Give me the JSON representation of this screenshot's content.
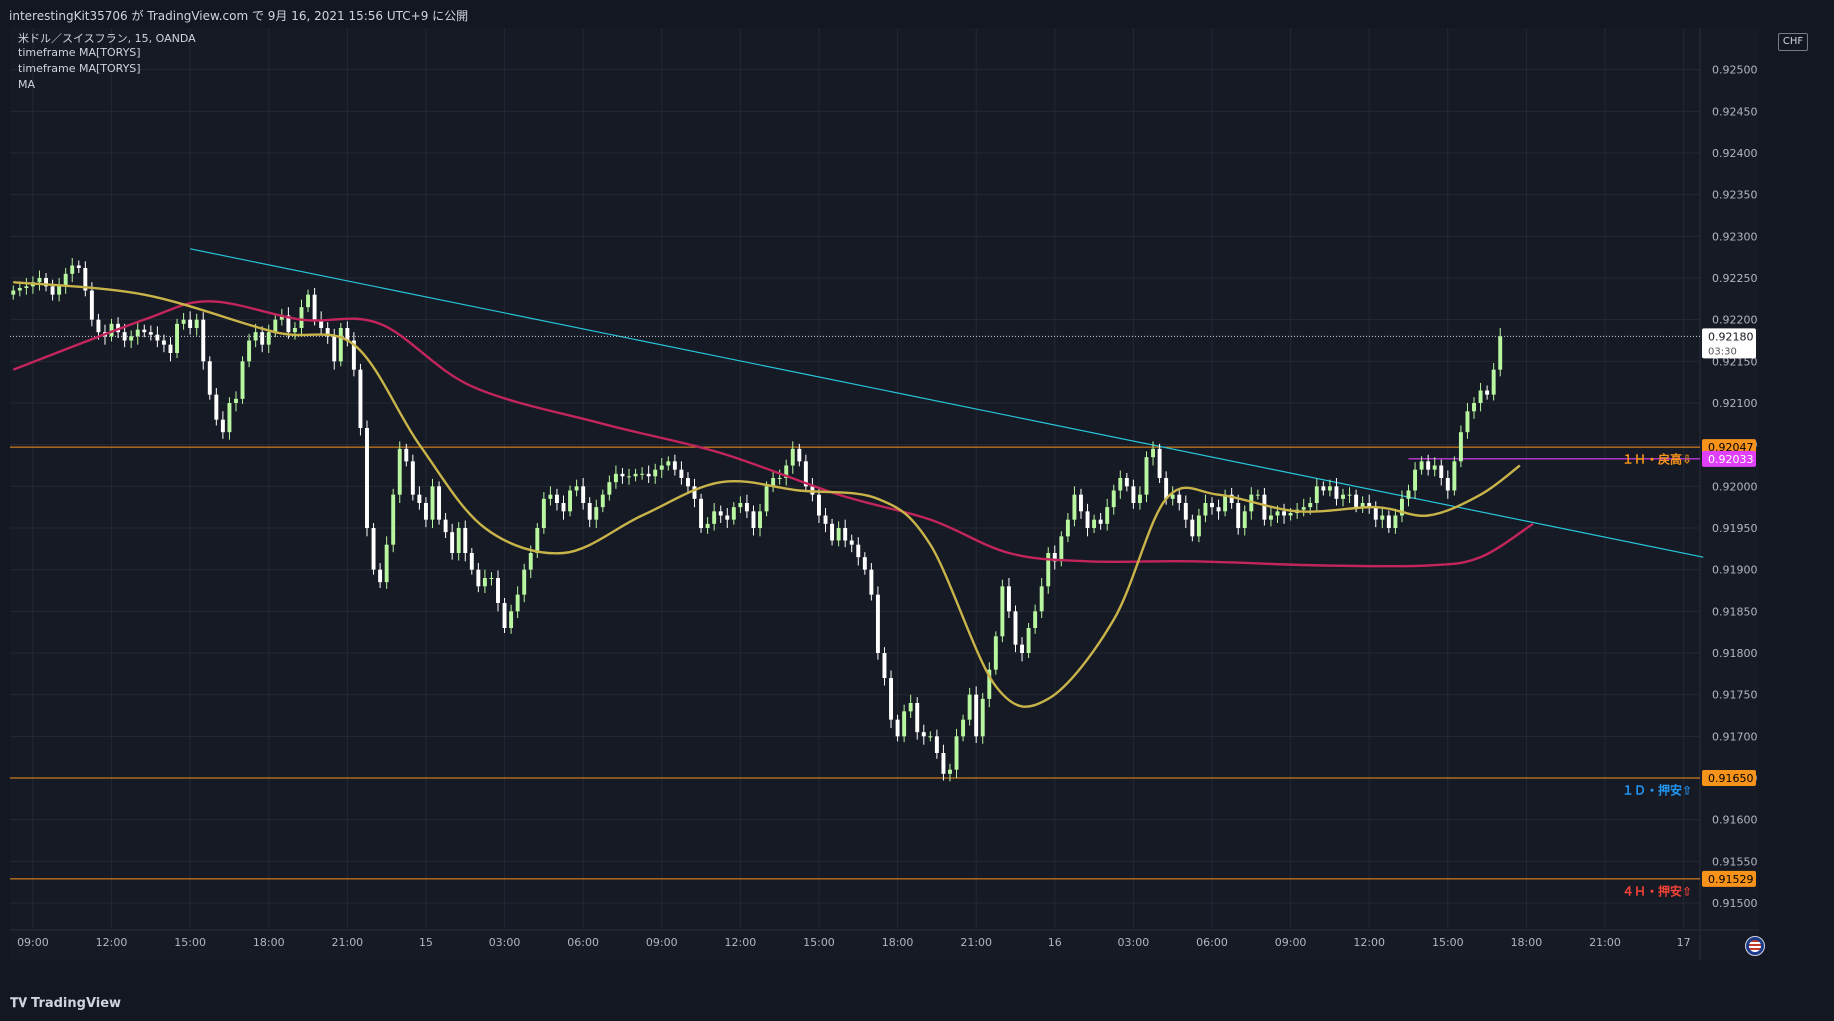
{
  "header": {
    "text": "interestingKit35706 が TradingView.com で 9月 16, 2021 15:56 UTC+9 に公開"
  },
  "legend": {
    "symbol": "米ドル／スイスフラン, 15, OANDA",
    "ind1": "timeframe MA[TORYS]",
    "ind2": "timeframe MA[TORYS]",
    "ind3": "MA"
  },
  "currency": "CHF",
  "brand": {
    "name": "TradingView",
    "logo": "tradingview-logo"
  },
  "colors": {
    "background": "#161a25",
    "grid": "#242833",
    "up": "#b9f6a0",
    "down": "#ffffff",
    "fast_ma": "#c9b44a",
    "slow_ma": "#c2255c",
    "trendline": "#26c6da",
    "level": "#f7931a",
    "magenta": "#e040fb"
  },
  "chart_data": {
    "type": "candlestick",
    "y_ticks": [
      "0.92500",
      "0.92450",
      "0.92400",
      "0.92350",
      "0.92300",
      "0.92250",
      "0.92200",
      "0.92150",
      "0.92100",
      "0.92050",
      "0.92000",
      "0.91950",
      "0.91900",
      "0.91850",
      "0.91800",
      "0.91750",
      "0.91700",
      "0.91650",
      "0.91600",
      "0.91550",
      "0.91500"
    ],
    "ylim": [
      0.9147,
      0.9255
    ],
    "x_ticks": [
      {
        "label": "09:00",
        "i": 3
      },
      {
        "label": "12:00",
        "i": 15
      },
      {
        "label": "15:00",
        "i": 27
      },
      {
        "label": "18:00",
        "i": 39
      },
      {
        "label": "21:00",
        "i": 51
      },
      {
        "label": "15",
        "i": 63
      },
      {
        "label": "03:00",
        "i": 75
      },
      {
        "label": "06:00",
        "i": 87
      },
      {
        "label": "09:00",
        "i": 99
      },
      {
        "label": "12:00",
        "i": 111
      },
      {
        "label": "15:00",
        "i": 123
      },
      {
        "label": "18:00",
        "i": 135
      },
      {
        "label": "21:00",
        "i": 147
      },
      {
        "label": "16",
        "i": 159
      },
      {
        "label": "03:00",
        "i": 171
      },
      {
        "label": "06:00",
        "i": 183
      },
      {
        "label": "09:00",
        "i": 195
      },
      {
        "label": "12:00",
        "i": 207
      },
      {
        "label": "15:00",
        "i": 219
      },
      {
        "label": "18:00",
        "i": 231
      },
      {
        "label": "21:00",
        "i": 243
      },
      {
        "label": "17",
        "i": 255
      }
    ],
    "x_count": 258,
    "close": [
      0.92235,
      0.92238,
      0.9224,
      0.92245,
      0.9225,
      0.9224,
      0.9223,
      0.9224,
      0.92255,
      0.92265,
      0.92262,
      0.92235,
      0.922,
      0.92185,
      0.9218,
      0.92195,
      0.92185,
      0.92175,
      0.9218,
      0.92188,
      0.92185,
      0.92182,
      0.92175,
      0.9217,
      0.9216,
      0.92195,
      0.922,
      0.9219,
      0.922,
      0.9215,
      0.9211,
      0.9208,
      0.92065,
      0.921,
      0.92105,
      0.9215,
      0.92175,
      0.92185,
      0.9217,
      0.92185,
      0.922,
      0.92205,
      0.92185,
      0.9219,
      0.92215,
      0.9223,
      0.922,
      0.9219,
      0.9218,
      0.9215,
      0.9219,
      0.92175,
      0.9214,
      0.9207,
      0.9195,
      0.919,
      0.91885,
      0.9193,
      0.9199,
      0.92045,
      0.9203,
      0.9199,
      0.9198,
      0.9196,
      0.92,
      0.9196,
      0.91945,
      0.9192,
      0.9195,
      0.9192,
      0.919,
      0.9188,
      0.9189,
      0.9189,
      0.9186,
      0.9183,
      0.9185,
      0.9187,
      0.919,
      0.9192,
      0.9195,
      0.91985,
      0.9199,
      0.9198,
      0.9197,
      0.91995,
      0.92,
      0.9198,
      0.9196,
      0.91975,
      0.9199,
      0.92005,
      0.92015,
      0.92012,
      0.92012,
      0.92015,
      0.92015,
      0.92012,
      0.9202,
      0.92025,
      0.9203,
      0.9202,
      0.9201,
      0.92,
      0.91985,
      0.9195,
      0.91955,
      0.9197,
      0.91965,
      0.9196,
      0.91975,
      0.9198,
      0.9197,
      0.9195,
      0.9197,
      0.92,
      0.9201,
      0.9201,
      0.92025,
      0.92045,
      0.9203,
      0.92,
      0.9199,
      0.91965,
      0.91955,
      0.91935,
      0.9195,
      0.91935,
      0.9193,
      0.91915,
      0.919,
      0.9187,
      0.918,
      0.9177,
      0.9172,
      0.917,
      0.9173,
      0.9174,
      0.91705,
      0.917,
      0.917,
      0.9168,
      0.91655,
      0.9166,
      0.917,
      0.9172,
      0.9175,
      0.917,
      0.91745,
      0.9178,
      0.9182,
      0.9188,
      0.9185,
      0.9181,
      0.918,
      0.9183,
      0.9185,
      0.9188,
      0.9192,
      0.9191,
      0.9194,
      0.9196,
      0.9199,
      0.9197,
      0.9195,
      0.9196,
      0.91955,
      0.91975,
      0.91995,
      0.9201,
      0.92,
      0.9198,
      0.9199,
      0.92035,
      0.92045,
      0.9201,
      0.91985,
      0.9199,
      0.9198,
      0.9196,
      0.9194,
      0.91965,
      0.9198,
      0.91975,
      0.9197,
      0.9199,
      0.9198,
      0.9195,
      0.9197,
      0.9199,
      0.9199,
      0.9196,
      0.91965,
      0.9197,
      0.91965,
      0.91968,
      0.91972,
      0.91975,
      0.9198,
      0.92,
      0.91995,
      0.92,
      0.91985,
      0.9199,
      0.9199,
      0.91975,
      0.9198,
      0.91975,
      0.9196,
      0.91965,
      0.9195,
      0.91965,
      0.91985,
      0.91995,
      0.9202,
      0.9203,
      0.9202,
      0.92025,
      0.9201,
      0.91995,
      0.9203,
      0.92065,
      0.9209,
      0.921,
      0.92115,
      0.9211,
      0.9214,
      0.9218
    ],
    "fast_ma_points": [
      [
        0,
        0.92245
      ],
      [
        20,
        0.9223
      ],
      [
        40,
        0.92185
      ],
      [
        52,
        0.9217
      ],
      [
        62,
        0.9205
      ],
      [
        72,
        0.9195
      ],
      [
        84,
        0.9192
      ],
      [
        96,
        0.91965
      ],
      [
        108,
        0.92005
      ],
      [
        120,
        0.91995
      ],
      [
        132,
        0.91985
      ],
      [
        140,
        0.9193
      ],
      [
        150,
        0.9176
      ],
      [
        158,
        0.91745
      ],
      [
        168,
        0.9184
      ],
      [
        176,
        0.91985
      ],
      [
        184,
        0.9199
      ],
      [
        196,
        0.9197
      ],
      [
        208,
        0.91975
      ],
      [
        216,
        0.91965
      ],
      [
        224,
        0.9199
      ],
      [
        230,
        0.92025
      ]
    ],
    "slow_ma_points": [
      [
        0,
        0.9214
      ],
      [
        20,
        0.922
      ],
      [
        30,
        0.92222
      ],
      [
        44,
        0.922
      ],
      [
        56,
        0.92195
      ],
      [
        70,
        0.9212
      ],
      [
        90,
        0.92075
      ],
      [
        108,
        0.9204
      ],
      [
        126,
        0.9199
      ],
      [
        140,
        0.9196
      ],
      [
        152,
        0.9192
      ],
      [
        164,
        0.9191
      ],
      [
        180,
        0.9191
      ],
      [
        200,
        0.91905
      ],
      [
        216,
        0.91905
      ],
      [
        224,
        0.91915
      ],
      [
        232,
        0.91955
      ]
    ],
    "trendline": [
      [
        27,
        0.92285
      ],
      [
        258,
        0.91915
      ]
    ],
    "levels": [
      {
        "price": 0.92047,
        "label": "0.92047",
        "color": "#f7931a",
        "text": "１Ｈ・戻高⇩",
        "text_color": "#f7931a",
        "text_at": 0.92032
      },
      {
        "price": 0.9165,
        "label": "0.91650",
        "color": "#f7931a",
        "text": "１Ｄ・押安⇧",
        "text_color": "#2196f3",
        "text_at": 0.91635
      },
      {
        "price": 0.91529,
        "label": "0.91529",
        "color": "#f7931a",
        "text": "４Ｈ・押安⇧",
        "text_color": "#f44336",
        "text_at": 0.91514
      }
    ],
    "magenta_line": {
      "price": 0.92033,
      "label": "0.92033",
      "from_i": 213
    },
    "last": {
      "price": 0.9218,
      "label": "0.92180",
      "countdown": "03:30"
    }
  }
}
